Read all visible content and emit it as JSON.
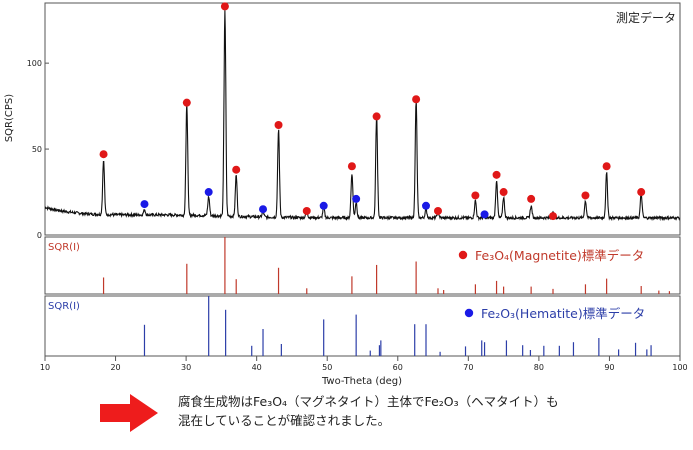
{
  "chart_data": {
    "type": "line",
    "xlabel": "Two-Theta (deg)",
    "xlim": [
      10,
      100
    ],
    "x_ticks": [
      10,
      20,
      30,
      40,
      50,
      60,
      70,
      80,
      90,
      100
    ],
    "panels": [
      {
        "id": "measured",
        "label": "測定データ",
        "ylabel": "SQR(CPS)",
        "ylim": [
          0,
          135
        ],
        "y_ticks": [
          0,
          50,
          100
        ],
        "baseline": 10,
        "peaks": [
          {
            "x": 18.3,
            "y": 42
          },
          {
            "x": 24.1,
            "y": 13
          },
          {
            "x": 30.1,
            "y": 75
          },
          {
            "x": 33.2,
            "y": 21
          },
          {
            "x": 35.5,
            "y": 130
          },
          {
            "x": 37.1,
            "y": 34
          },
          {
            "x": 40.9,
            "y": 13
          },
          {
            "x": 43.1,
            "y": 61
          },
          {
            "x": 47.1,
            "y": 14
          },
          {
            "x": 49.5,
            "y": 16
          },
          {
            "x": 53.5,
            "y": 36
          },
          {
            "x": 54.1,
            "y": 19
          },
          {
            "x": 57.0,
            "y": 69
          },
          {
            "x": 62.6,
            "y": 78
          },
          {
            "x": 64.0,
            "y": 15
          },
          {
            "x": 65.7,
            "y": 14
          },
          {
            "x": 71.0,
            "y": 20
          },
          {
            "x": 74.0,
            "y": 32
          },
          {
            "x": 75.0,
            "y": 22
          },
          {
            "x": 78.9,
            "y": 17
          },
          {
            "x": 82.0,
            "y": 13
          },
          {
            "x": 86.6,
            "y": 20
          },
          {
            "x": 89.6,
            "y": 36
          },
          {
            "x": 94.5,
            "y": 24
          }
        ],
        "markers": {
          "magnetite_red": [
            {
              "x": 18.3,
              "y": 47
            },
            {
              "x": 30.1,
              "y": 77
            },
            {
              "x": 35.5,
              "y": 133
            },
            {
              "x": 37.1,
              "y": 38
            },
            {
              "x": 43.1,
              "y": 64
            },
            {
              "x": 47.1,
              "y": 14
            },
            {
              "x": 53.5,
              "y": 40
            },
            {
              "x": 57.0,
              "y": 69
            },
            {
              "x": 62.6,
              "y": 79
            },
            {
              "x": 65.7,
              "y": 14
            },
            {
              "x": 71.0,
              "y": 23
            },
            {
              "x": 74.0,
              "y": 35
            },
            {
              "x": 75.0,
              "y": 25
            },
            {
              "x": 78.9,
              "y": 21
            },
            {
              "x": 82.0,
              "y": 11
            },
            {
              "x": 86.6,
              "y": 23
            },
            {
              "x": 89.6,
              "y": 40
            },
            {
              "x": 94.5,
              "y": 25
            }
          ],
          "hematite_blue": [
            {
              "x": 24.1,
              "y": 18
            },
            {
              "x": 33.2,
              "y": 25
            },
            {
              "x": 40.9,
              "y": 15
            },
            {
              "x": 49.5,
              "y": 17
            },
            {
              "x": 54.1,
              "y": 21
            },
            {
              "x": 64.0,
              "y": 17
            },
            {
              "x": 72.3,
              "y": 12
            }
          ]
        },
        "color": "#111111"
      },
      {
        "id": "magnetite",
        "label": "SQR(I)",
        "legend": "Fe₃O₄(Magnetite)標準データ",
        "color": "#c0392b",
        "ylim": [
          0,
          100
        ],
        "sticks": [
          {
            "x": 18.3,
            "y": 29
          },
          {
            "x": 30.1,
            "y": 53
          },
          {
            "x": 35.5,
            "y": 100
          },
          {
            "x": 37.1,
            "y": 26
          },
          {
            "x": 43.1,
            "y": 46
          },
          {
            "x": 47.1,
            "y": 10
          },
          {
            "x": 53.5,
            "y": 31
          },
          {
            "x": 57.0,
            "y": 51
          },
          {
            "x": 62.6,
            "y": 57
          },
          {
            "x": 65.7,
            "y": 10
          },
          {
            "x": 66.5,
            "y": 7
          },
          {
            "x": 71.0,
            "y": 17
          },
          {
            "x": 74.0,
            "y": 23
          },
          {
            "x": 75.0,
            "y": 13
          },
          {
            "x": 78.9,
            "y": 13
          },
          {
            "x": 82.0,
            "y": 9
          },
          {
            "x": 86.6,
            "y": 17
          },
          {
            "x": 89.6,
            "y": 27
          },
          {
            "x": 94.5,
            "y": 14
          },
          {
            "x": 97.0,
            "y": 6
          },
          {
            "x": 98.5,
            "y": 5
          }
        ]
      },
      {
        "id": "hematite",
        "label": "SQR(I)",
        "legend": "Fe₂O₃(Hematite)標準データ",
        "color": "#2c3ea8",
        "ylim": [
          0,
          100
        ],
        "sticks": [
          {
            "x": 24.1,
            "y": 52
          },
          {
            "x": 33.2,
            "y": 100
          },
          {
            "x": 35.6,
            "y": 77
          },
          {
            "x": 39.3,
            "y": 17
          },
          {
            "x": 40.9,
            "y": 45
          },
          {
            "x": 43.5,
            "y": 20
          },
          {
            "x": 49.5,
            "y": 61
          },
          {
            "x": 54.1,
            "y": 69
          },
          {
            "x": 56.1,
            "y": 9
          },
          {
            "x": 57.6,
            "y": 26
          },
          {
            "x": 57.4,
            "y": 18
          },
          {
            "x": 62.4,
            "y": 53
          },
          {
            "x": 64.0,
            "y": 53
          },
          {
            "x": 66.0,
            "y": 7
          },
          {
            "x": 69.6,
            "y": 16
          },
          {
            "x": 71.9,
            "y": 26
          },
          {
            "x": 72.3,
            "y": 23
          },
          {
            "x": 75.4,
            "y": 26
          },
          {
            "x": 77.7,
            "y": 18
          },
          {
            "x": 78.8,
            "y": 10
          },
          {
            "x": 80.7,
            "y": 17
          },
          {
            "x": 82.9,
            "y": 17
          },
          {
            "x": 84.9,
            "y": 23
          },
          {
            "x": 88.5,
            "y": 30
          },
          {
            "x": 91.3,
            "y": 11
          },
          {
            "x": 93.7,
            "y": 22
          },
          {
            "x": 95.3,
            "y": 11
          },
          {
            "x": 95.9,
            "y": 18
          }
        ]
      }
    ]
  },
  "caption": {
    "line1": "腐食生成物はFe₃O₄（マグネタイト）主体でFe₂O₃（ヘマタイト）も",
    "line2": "混在していることが確認されました。"
  },
  "colors": {
    "arrow": "#ee1c1c",
    "red_marker": "#e01818",
    "blue_marker": "#1a1ae6"
  }
}
